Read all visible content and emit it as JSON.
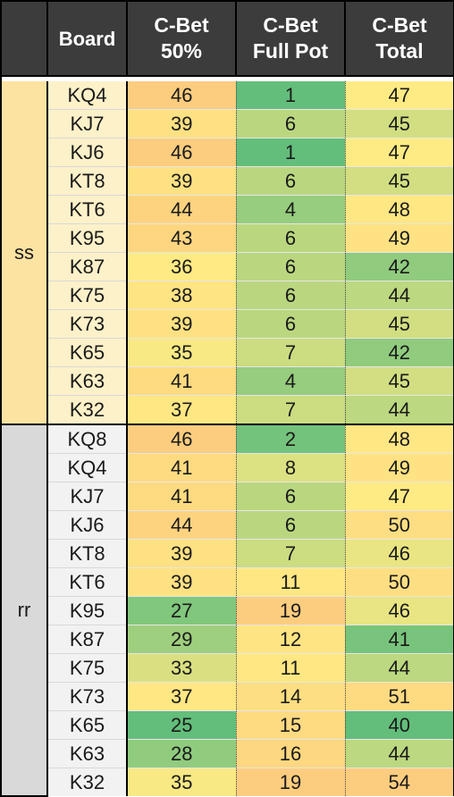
{
  "header": {
    "corner": "",
    "board": "Board",
    "col_50": [
      "C-Bet",
      "50%"
    ],
    "col_full": [
      "C-Bet",
      "Full Pot"
    ],
    "col_total": [
      "C-Bet",
      "Total"
    ]
  },
  "colors": {
    "header_bg": "#3c3c3c",
    "ss_label_bg": "#fde3a1",
    "ss_board_bg": "#fdf1c9",
    "rr_label_bg": "#d9d9d9",
    "rr_board_bg": "#f2f2f2",
    "scale_low": "#63be7b",
    "scale_mid": "#ffeb84",
    "scale_high": "#fdcd7f"
  },
  "groups": [
    {
      "label": "ss",
      "rows": [
        {
          "board": "KQ4",
          "cbet_50": 46,
          "cbet_full": 1,
          "cbet_total": 47
        },
        {
          "board": "KJ7",
          "cbet_50": 39,
          "cbet_full": 6,
          "cbet_total": 45
        },
        {
          "board": "KJ6",
          "cbet_50": 46,
          "cbet_full": 1,
          "cbet_total": 47
        },
        {
          "board": "KT8",
          "cbet_50": 39,
          "cbet_full": 6,
          "cbet_total": 45
        },
        {
          "board": "KT6",
          "cbet_50": 44,
          "cbet_full": 4,
          "cbet_total": 48
        },
        {
          "board": "K95",
          "cbet_50": 43,
          "cbet_full": 6,
          "cbet_total": 49
        },
        {
          "board": "K87",
          "cbet_50": 36,
          "cbet_full": 6,
          "cbet_total": 42
        },
        {
          "board": "K75",
          "cbet_50": 38,
          "cbet_full": 6,
          "cbet_total": 44
        },
        {
          "board": "K73",
          "cbet_50": 39,
          "cbet_full": 6,
          "cbet_total": 45
        },
        {
          "board": "K65",
          "cbet_50": 35,
          "cbet_full": 7,
          "cbet_total": 42
        },
        {
          "board": "K63",
          "cbet_50": 41,
          "cbet_full": 4,
          "cbet_total": 45
        },
        {
          "board": "K32",
          "cbet_50": 37,
          "cbet_full": 7,
          "cbet_total": 44
        }
      ]
    },
    {
      "label": "rr",
      "rows": [
        {
          "board": "KQ8",
          "cbet_50": 46,
          "cbet_full": 2,
          "cbet_total": 48
        },
        {
          "board": "KQ4",
          "cbet_50": 41,
          "cbet_full": 8,
          "cbet_total": 49
        },
        {
          "board": "KJ7",
          "cbet_50": 41,
          "cbet_full": 6,
          "cbet_total": 47
        },
        {
          "board": "KJ6",
          "cbet_50": 44,
          "cbet_full": 6,
          "cbet_total": 50
        },
        {
          "board": "KT8",
          "cbet_50": 39,
          "cbet_full": 7,
          "cbet_total": 46
        },
        {
          "board": "KT6",
          "cbet_50": 39,
          "cbet_full": 11,
          "cbet_total": 50
        },
        {
          "board": "K95",
          "cbet_50": 27,
          "cbet_full": 19,
          "cbet_total": 46
        },
        {
          "board": "K87",
          "cbet_50": 29,
          "cbet_full": 12,
          "cbet_total": 41
        },
        {
          "board": "K75",
          "cbet_50": 33,
          "cbet_full": 11,
          "cbet_total": 44
        },
        {
          "board": "K73",
          "cbet_50": 37,
          "cbet_full": 14,
          "cbet_total": 51
        },
        {
          "board": "K65",
          "cbet_50": 25,
          "cbet_full": 15,
          "cbet_total": 40
        },
        {
          "board": "K63",
          "cbet_50": 28,
          "cbet_full": 16,
          "cbet_total": 44
        },
        {
          "board": "K32",
          "cbet_50": 35,
          "cbet_full": 19,
          "cbet_total": 54
        }
      ]
    }
  ]
}
